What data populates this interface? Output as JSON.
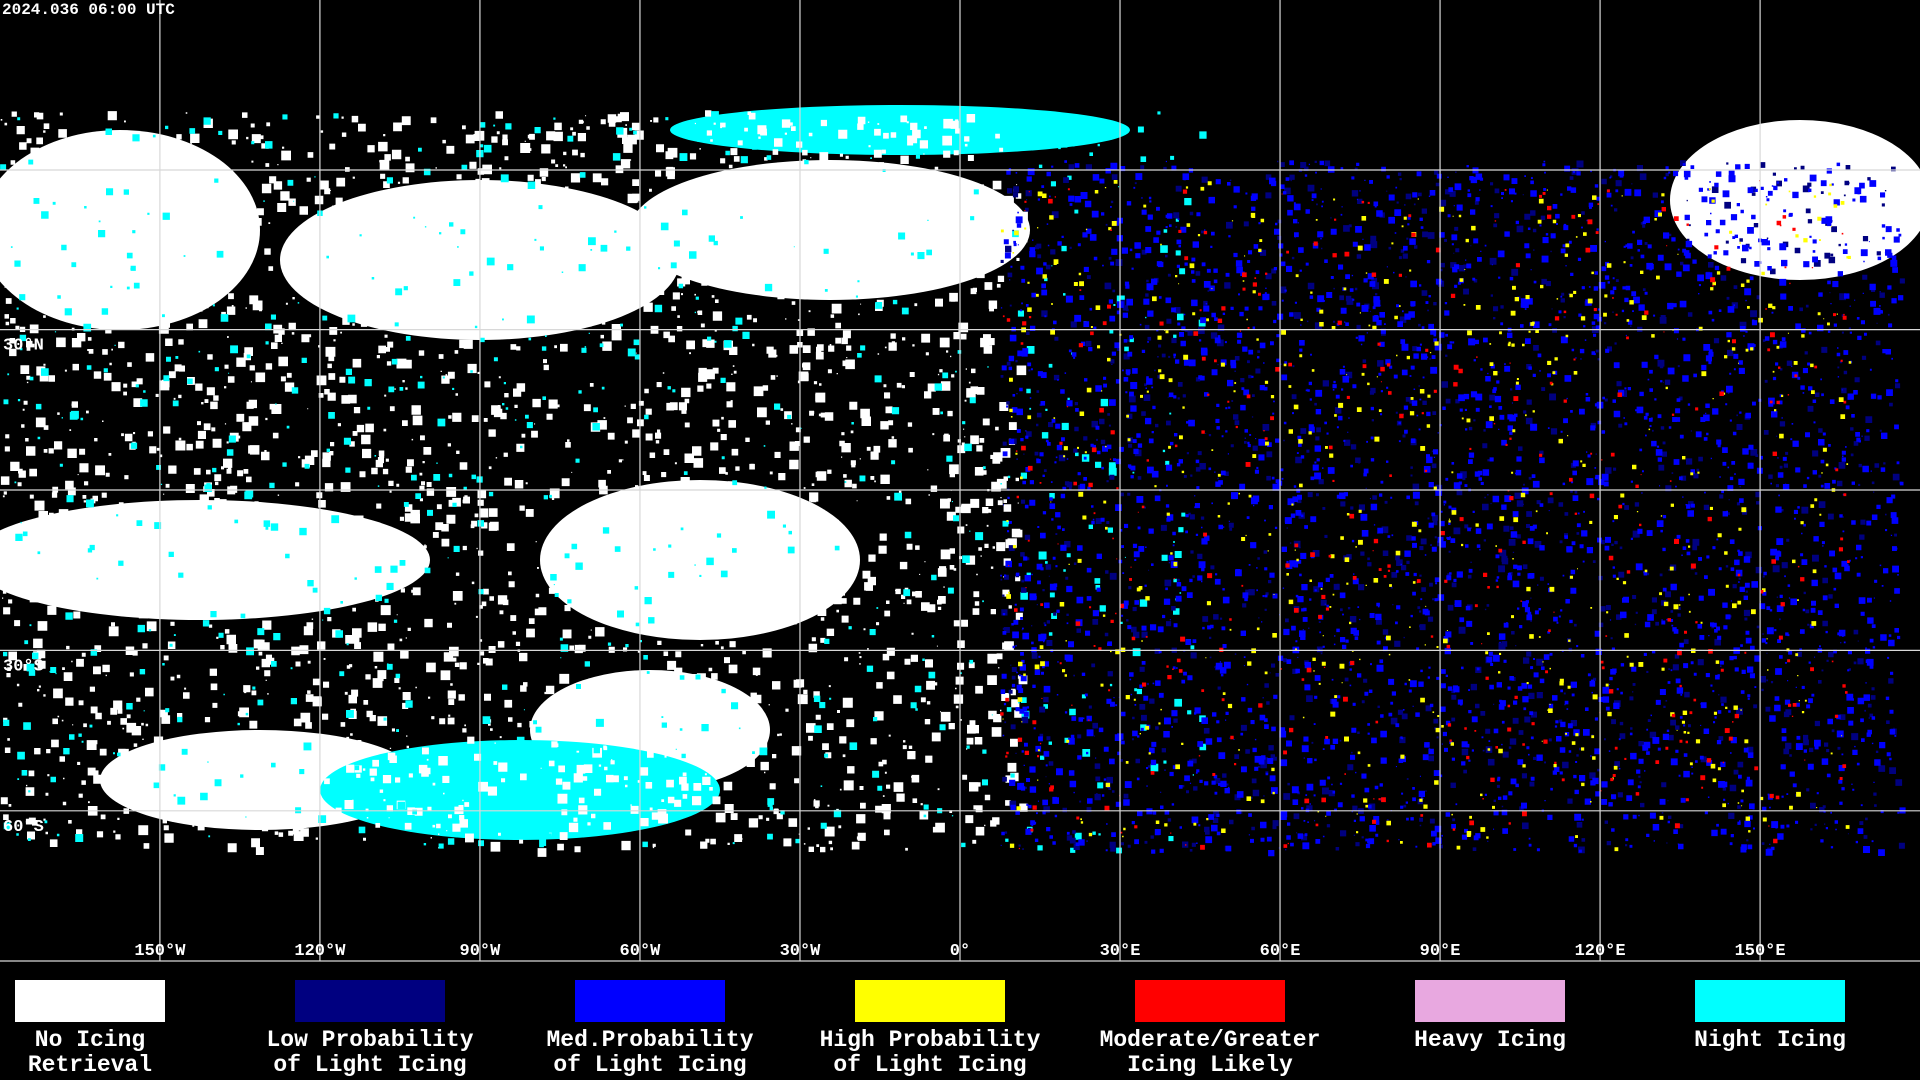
{
  "header": {
    "timestamp": "2024.036 06:00 UTC"
  },
  "grid": {
    "longitudes": [
      {
        "value": -150,
        "label": "150°W"
      },
      {
        "value": -120,
        "label": "120°W"
      },
      {
        "value": -90,
        "label": "90°W"
      },
      {
        "value": -60,
        "label": "60°W"
      },
      {
        "value": -30,
        "label": "30°W"
      },
      {
        "value": 0,
        "label": "0°"
      },
      {
        "value": 30,
        "label": "30°E"
      },
      {
        "value": 60,
        "label": "60°E"
      },
      {
        "value": 90,
        "label": "90°E"
      },
      {
        "value": 120,
        "label": "120°E"
      },
      {
        "value": 150,
        "label": "150°E"
      }
    ],
    "latitudes": [
      {
        "value": 30,
        "label": "30°N"
      },
      {
        "value": -30,
        "label": "30°S"
      },
      {
        "value": -60,
        "label": "60°S"
      }
    ]
  },
  "legend": {
    "items": [
      {
        "lines": [
          "No Icing",
          "Retrieval"
        ],
        "color": "#ffffff"
      },
      {
        "lines": [
          "Low Probability",
          "of Light Icing"
        ],
        "color": "#000080"
      },
      {
        "lines": [
          "Med.Probability",
          "of Light Icing"
        ],
        "color": "#0000ff"
      },
      {
        "lines": [
          "High Probability",
          "of Light Icing"
        ],
        "color": "#ffff00"
      },
      {
        "lines": [
          "Moderate/Greater",
          "Icing Likely"
        ],
        "color": "#ff0000"
      },
      {
        "lines": [
          "Heavy Icing"
        ],
        "color": "#e8a8e0"
      },
      {
        "lines": [
          "Night Icing"
        ],
        "color": "#00ffff"
      }
    ]
  }
}
